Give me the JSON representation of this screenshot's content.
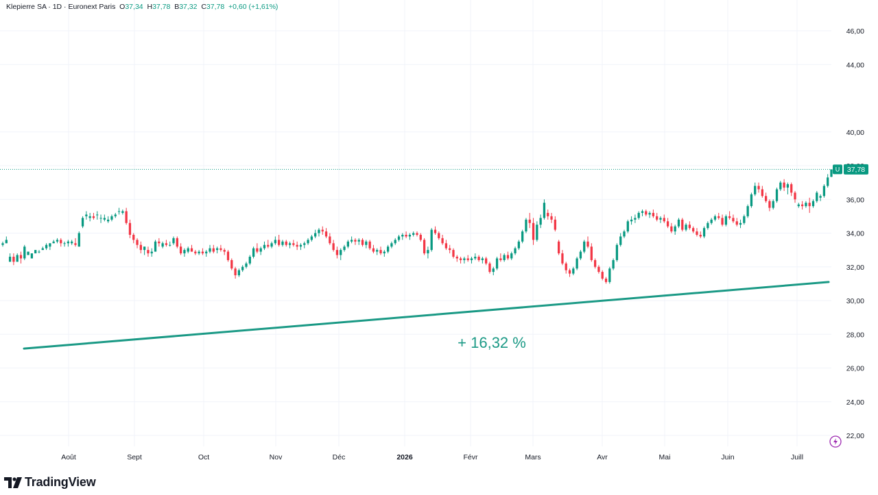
{
  "legend": {
    "symbol": "Klepierre SA · 1D · Euronext Paris",
    "o_key": "O",
    "o_val": "37,34",
    "h_key": "H",
    "h_val": "37,78",
    "b_key": "B",
    "b_val": "37,32",
    "c_key": "C",
    "c_val": "37,78",
    "change": "+0,60 (+1,61%)"
  },
  "annotation": "+ 16,32 %",
  "price_badge": {
    "flag": "U",
    "value": "37,78"
  },
  "brand": "TradingView",
  "colors": {
    "up": "#089981",
    "down": "#f23645",
    "grid": "#f0f3fa",
    "axis_text": "#131722",
    "trend": "#1a9985"
  },
  "icons": [
    "tradingview-logo-icon",
    "lightning-icon"
  ],
  "chart_data": {
    "type": "candlestick",
    "ylim": [
      21,
      47
    ],
    "y_ticks": [
      "22,00",
      "24,00",
      "26,00",
      "28,00",
      "30,00",
      "32,00",
      "34,00",
      "36,00",
      "38,00",
      "40,00",
      "44,00",
      "46,00"
    ],
    "y_tick_values": [
      22,
      24,
      26,
      28,
      30,
      32,
      34,
      36,
      38,
      40,
      44,
      46
    ],
    "x_labels": [
      "Août",
      "Sept",
      "Oct",
      "Nov",
      "Déc",
      "2026",
      "Févr",
      "Mars",
      "Avr",
      "Mai",
      "Juin",
      "Juill"
    ],
    "last_price": 37.78,
    "trendline": {
      "start": 27.15,
      "end": 31.1
    },
    "ohlc": [
      [
        33.3,
        33.5,
        33.2,
        33.4
      ],
      [
        33.4,
        33.8,
        33.4,
        33.6
      ],
      [
        32.3,
        32.8,
        32.3,
        32.6
      ],
      [
        32.6,
        32.8,
        32.1,
        32.3
      ],
      [
        32.3,
        32.8,
        32.3,
        32.7
      ],
      [
        32.7,
        32.9,
        32.2,
        32.5
      ],
      [
        32.5,
        33.3,
        32.4,
        33.2
      ],
      [
        32.7,
        32.9,
        32.7,
        32.9
      ],
      [
        32.5,
        32.8,
        32.5,
        32.8
      ],
      [
        32.8,
        33.0,
        32.8,
        33.0
      ],
      [
        32.9,
        33.0,
        32.8,
        32.9
      ],
      [
        33.0,
        33.2,
        33.0,
        33.1
      ],
      [
        33.1,
        33.4,
        33.0,
        33.3
      ],
      [
        33.2,
        33.4,
        33.0,
        33.4
      ],
      [
        33.4,
        33.6,
        33.4,
        33.5
      ],
      [
        33.5,
        33.7,
        33.4,
        33.6
      ],
      [
        33.6,
        33.7,
        33.2,
        33.4
      ],
      [
        33.4,
        33.5,
        33.2,
        33.4
      ],
      [
        33.4,
        33.6,
        33.2,
        33.5
      ],
      [
        33.4,
        33.6,
        33.3,
        33.5
      ],
      [
        33.4,
        33.7,
        33.2,
        33.3
      ],
      [
        33.2,
        34.1,
        33.2,
        34.0
      ],
      [
        34.4,
        35.0,
        34.3,
        34.9
      ],
      [
        35.0,
        35.3,
        34.8,
        35.1
      ],
      [
        34.9,
        35.2,
        34.7,
        35.0
      ],
      [
        35.0,
        35.2,
        34.8,
        34.9
      ],
      [
        35.1,
        35.3,
        34.8,
        35.1
      ],
      [
        34.9,
        35.1,
        34.6,
        34.9
      ],
      [
        34.8,
        35.1,
        34.7,
        34.9
      ],
      [
        34.7,
        35.0,
        34.6,
        34.8
      ],
      [
        34.8,
        35.1,
        34.7,
        35.0
      ],
      [
        35.0,
        35.2,
        34.9,
        35.1
      ],
      [
        35.3,
        35.5,
        35.1,
        35.3
      ],
      [
        35.2,
        35.4,
        35.1,
        35.3
      ],
      [
        35.3,
        35.5,
        34.5,
        34.6
      ],
      [
        34.6,
        34.8,
        33.7,
        33.9
      ],
      [
        33.9,
        34.0,
        33.4,
        33.6
      ],
      [
        33.6,
        33.7,
        33.1,
        33.3
      ],
      [
        33.3,
        33.5,
        32.8,
        33.0
      ],
      [
        33.0,
        33.2,
        32.7,
        33.2
      ],
      [
        33.0,
        33.2,
        32.6,
        32.8
      ],
      [
        32.8,
        33.1,
        32.6,
        32.9
      ],
      [
        32.9,
        33.6,
        32.9,
        33.5
      ],
      [
        33.5,
        33.7,
        33.2,
        33.4
      ],
      [
        33.2,
        33.5,
        33.1,
        33.4
      ],
      [
        33.4,
        33.6,
        33.2,
        33.3
      ],
      [
        33.3,
        33.5,
        33.2,
        33.3
      ],
      [
        33.4,
        33.8,
        33.3,
        33.7
      ],
      [
        33.7,
        33.8,
        33.1,
        33.2
      ],
      [
        33.2,
        33.4,
        32.7,
        32.8
      ],
      [
        32.8,
        33.1,
        32.6,
        33.0
      ],
      [
        32.9,
        33.2,
        32.8,
        33.1
      ],
      [
        33.1,
        33.3,
        32.9,
        32.9
      ],
      [
        32.9,
        33.0,
        32.7,
        32.8
      ],
      [
        32.8,
        33.0,
        32.7,
        32.9
      ],
      [
        32.9,
        33.1,
        32.7,
        32.8
      ],
      [
        32.8,
        33.0,
        32.6,
        32.9
      ],
      [
        32.9,
        33.3,
        32.8,
        33.1
      ],
      [
        33.1,
        33.3,
        32.8,
        32.9
      ],
      [
        33.0,
        33.2,
        32.8,
        33.1
      ],
      [
        33.1,
        33.3,
        32.9,
        33.0
      ],
      [
        33.0,
        33.1,
        32.7,
        32.9
      ],
      [
        32.9,
        33.0,
        32.3,
        32.4
      ],
      [
        32.4,
        32.5,
        31.8,
        31.9
      ],
      [
        31.9,
        32.0,
        31.3,
        31.5
      ],
      [
        31.5,
        31.9,
        31.4,
        31.8
      ],
      [
        31.8,
        32.1,
        31.7,
        32.0
      ],
      [
        32.0,
        32.3,
        31.9,
        32.2
      ],
      [
        32.2,
        32.7,
        32.1,
        32.6
      ],
      [
        32.6,
        33.2,
        32.5,
        33.1
      ],
      [
        33.1,
        33.4,
        32.8,
        32.9
      ],
      [
        32.9,
        33.2,
        32.7,
        33.1
      ],
      [
        33.1,
        33.5,
        33.0,
        33.3
      ],
      [
        33.3,
        33.6,
        33.1,
        33.2
      ],
      [
        33.2,
        33.5,
        33.1,
        33.4
      ],
      [
        33.4,
        33.8,
        33.3,
        33.6
      ],
      [
        33.6,
        33.9,
        33.2,
        33.3
      ],
      [
        33.3,
        33.6,
        33.2,
        33.5
      ],
      [
        33.5,
        33.6,
        33.2,
        33.3
      ],
      [
        33.3,
        33.5,
        33.1,
        33.4
      ],
      [
        33.4,
        33.6,
        33.2,
        33.3
      ],
      [
        33.3,
        33.5,
        33.0,
        33.2
      ],
      [
        33.2,
        33.4,
        33.0,
        33.3
      ],
      [
        33.3,
        33.5,
        33.1,
        33.4
      ],
      [
        33.4,
        33.7,
        33.3,
        33.6
      ],
      [
        33.6,
        33.9,
        33.5,
        33.8
      ],
      [
        33.8,
        34.2,
        33.7,
        34.0
      ],
      [
        34.0,
        34.3,
        33.8,
        34.2
      ],
      [
        34.2,
        34.4,
        33.9,
        34.1
      ],
      [
        34.1,
        34.3,
        33.7,
        33.8
      ],
      [
        33.8,
        34.0,
        33.3,
        33.4
      ],
      [
        33.4,
        33.6,
        32.9,
        33.0
      ],
      [
        33.0,
        33.2,
        32.5,
        32.7
      ],
      [
        32.7,
        33.1,
        32.4,
        33.0
      ],
      [
        33.0,
        33.3,
        32.9,
        33.2
      ],
      [
        33.2,
        33.6,
        33.1,
        33.5
      ],
      [
        33.5,
        33.8,
        33.4,
        33.6
      ],
      [
        33.6,
        33.7,
        33.3,
        33.5
      ],
      [
        33.5,
        33.7,
        33.3,
        33.6
      ],
      [
        33.6,
        33.7,
        33.2,
        33.3
      ],
      [
        33.3,
        33.6,
        33.1,
        33.5
      ],
      [
        33.5,
        33.6,
        33.0,
        33.1
      ],
      [
        33.1,
        33.3,
        32.8,
        32.9
      ],
      [
        32.9,
        33.1,
        32.7,
        33.0
      ],
      [
        33.0,
        33.2,
        32.7,
        32.8
      ],
      [
        32.8,
        33.0,
        32.6,
        32.9
      ],
      [
        32.9,
        33.3,
        32.8,
        33.2
      ],
      [
        33.2,
        33.5,
        33.1,
        33.4
      ],
      [
        33.4,
        33.7,
        33.3,
        33.6
      ],
      [
        33.6,
        33.9,
        33.5,
        33.8
      ],
      [
        33.8,
        34.0,
        33.6,
        33.9
      ],
      [
        33.9,
        34.1,
        33.7,
        33.8
      ],
      [
        33.8,
        34.0,
        33.6,
        33.9
      ],
      [
        33.9,
        34.1,
        33.8,
        34.0
      ],
      [
        34.0,
        34.1,
        33.8,
        33.9
      ],
      [
        33.9,
        34.0,
        33.5,
        33.6
      ],
      [
        33.6,
        33.7,
        32.7,
        32.8
      ],
      [
        32.8,
        33.2,
        32.5,
        33.0
      ],
      [
        33.0,
        34.3,
        32.9,
        34.2
      ],
      [
        34.2,
        34.4,
        33.9,
        34.0
      ],
      [
        34.0,
        34.1,
        33.6,
        33.7
      ],
      [
        33.7,
        33.9,
        33.3,
        33.4
      ],
      [
        33.4,
        33.6,
        33.0,
        33.1
      ],
      [
        33.1,
        33.3,
        32.8,
        33.0
      ],
      [
        33.0,
        33.1,
        32.5,
        32.6
      ],
      [
        32.6,
        32.7,
        32.3,
        32.5
      ],
      [
        32.5,
        32.6,
        32.2,
        32.4
      ],
      [
        32.4,
        32.6,
        32.2,
        32.5
      ],
      [
        32.5,
        32.7,
        32.3,
        32.4
      ],
      [
        32.4,
        32.6,
        32.2,
        32.5
      ],
      [
        32.5,
        32.8,
        32.4,
        32.6
      ],
      [
        32.6,
        32.7,
        32.3,
        32.4
      ],
      [
        32.4,
        32.6,
        32.2,
        32.5
      ],
      [
        32.5,
        32.6,
        32.1,
        32.2
      ],
      [
        32.2,
        32.3,
        31.6,
        31.7
      ],
      [
        31.7,
        32.0,
        31.5,
        31.9
      ],
      [
        31.9,
        32.6,
        31.8,
        32.5
      ],
      [
        32.5,
        32.8,
        32.3,
        32.4
      ],
      [
        32.4,
        32.8,
        32.3,
        32.7
      ],
      [
        32.7,
        32.9,
        32.4,
        32.5
      ],
      [
        32.5,
        32.9,
        32.4,
        32.8
      ],
      [
        32.8,
        33.2,
        32.7,
        33.1
      ],
      [
        33.1,
        33.6,
        33.0,
        33.5
      ],
      [
        33.5,
        34.2,
        33.4,
        34.1
      ],
      [
        34.1,
        34.9,
        34.0,
        34.8
      ],
      [
        34.8,
        35.2,
        34.3,
        34.6
      ],
      [
        34.6,
        34.9,
        33.3,
        33.6
      ],
      [
        33.6,
        34.7,
        33.5,
        34.5
      ],
      [
        34.5,
        35.1,
        34.3,
        34.9
      ],
      [
        34.9,
        36.0,
        34.8,
        35.8
      ],
      [
        35.2,
        35.4,
        34.8,
        35.0
      ],
      [
        35.0,
        35.2,
        34.6,
        34.8
      ],
      [
        34.8,
        35.0,
        34.1,
        34.2
      ],
      [
        33.5,
        33.6,
        32.7,
        32.8
      ],
      [
        32.8,
        33.0,
        32.1,
        32.2
      ],
      [
        32.2,
        32.3,
        31.6,
        31.8
      ],
      [
        31.8,
        31.9,
        31.4,
        31.6
      ],
      [
        31.6,
        32.0,
        31.5,
        31.9
      ],
      [
        31.9,
        32.6,
        31.8,
        32.5
      ],
      [
        32.5,
        33.0,
        32.4,
        32.9
      ],
      [
        32.9,
        33.6,
        32.8,
        33.5
      ],
      [
        33.5,
        33.8,
        33.1,
        33.2
      ],
      [
        33.2,
        33.4,
        32.3,
        32.4
      ],
      [
        32.4,
        32.5,
        31.9,
        32.0
      ],
      [
        32.0,
        32.1,
        31.6,
        31.7
      ],
      [
        31.7,
        31.8,
        31.2,
        31.3
      ],
      [
        31.3,
        31.4,
        31.0,
        31.1
      ],
      [
        31.1,
        32.0,
        31.0,
        31.9
      ],
      [
        31.9,
        32.5,
        31.8,
        32.4
      ],
      [
        32.4,
        33.4,
        32.3,
        33.3
      ],
      [
        33.3,
        34.0,
        33.2,
        33.8
      ],
      [
        33.8,
        34.2,
        33.7,
        34.1
      ],
      [
        34.1,
        34.8,
        34.0,
        34.7
      ],
      [
        34.7,
        35.0,
        34.5,
        34.8
      ],
      [
        34.8,
        35.1,
        34.6,
        34.9
      ],
      [
        34.9,
        35.3,
        34.8,
        35.2
      ],
      [
        35.2,
        35.4,
        35.0,
        35.3
      ],
      [
        35.3,
        35.4,
        35.0,
        35.1
      ],
      [
        35.1,
        35.3,
        34.9,
        35.2
      ],
      [
        35.2,
        35.4,
        34.9,
        35.0
      ],
      [
        35.0,
        35.2,
        34.7,
        34.8
      ],
      [
        34.8,
        35.0,
        34.6,
        34.9
      ],
      [
        34.9,
        35.1,
        34.6,
        34.7
      ],
      [
        34.7,
        34.9,
        34.3,
        34.4
      ],
      [
        34.4,
        34.6,
        34.0,
        34.1
      ],
      [
        34.1,
        34.5,
        33.9,
        34.4
      ],
      [
        34.4,
        34.9,
        34.3,
        34.8
      ],
      [
        34.8,
        34.9,
        34.1,
        34.2
      ],
      [
        34.2,
        34.6,
        34.1,
        34.5
      ],
      [
        34.5,
        34.7,
        34.2,
        34.3
      ],
      [
        34.3,
        34.4,
        34.0,
        34.1
      ],
      [
        34.1,
        34.3,
        33.8,
        33.9
      ],
      [
        33.9,
        34.1,
        33.7,
        33.8
      ],
      [
        33.8,
        34.4,
        33.7,
        34.3
      ],
      [
        34.3,
        34.7,
        34.2,
        34.6
      ],
      [
        34.6,
        34.9,
        34.5,
        34.8
      ],
      [
        34.8,
        35.1,
        34.7,
        35.0
      ],
      [
        35.0,
        35.2,
        34.8,
        34.9
      ],
      [
        34.9,
        35.1,
        34.4,
        34.5
      ],
      [
        34.5,
        35.1,
        34.4,
        35.0
      ],
      [
        35.0,
        35.3,
        34.8,
        34.9
      ],
      [
        34.9,
        35.1,
        34.6,
        34.7
      ],
      [
        34.7,
        34.9,
        34.4,
        34.5
      ],
      [
        34.5,
        34.8,
        34.3,
        34.6
      ],
      [
        34.6,
        35.1,
        34.5,
        35.0
      ],
      [
        35.0,
        35.7,
        34.9,
        35.6
      ],
      [
        35.6,
        36.4,
        35.5,
        36.3
      ],
      [
        36.3,
        37.0,
        36.2,
        36.8
      ],
      [
        36.8,
        37.0,
        36.4,
        36.6
      ],
      [
        36.6,
        36.8,
        36.1,
        36.2
      ],
      [
        36.2,
        36.4,
        35.8,
        35.9
      ],
      [
        35.9,
        36.0,
        35.3,
        35.5
      ],
      [
        35.5,
        36.0,
        35.4,
        35.9
      ],
      [
        35.9,
        36.7,
        35.8,
        36.6
      ],
      [
        36.6,
        37.1,
        36.5,
        37.0
      ],
      [
        37.0,
        37.2,
        36.5,
        36.7
      ],
      [
        36.7,
        37.0,
        36.3,
        36.9
      ],
      [
        36.9,
        37.0,
        36.2,
        36.4
      ],
      [
        36.4,
        36.5,
        35.8,
        36.0
      ],
      [
        35.6,
        35.8,
        35.5,
        35.7
      ],
      [
        35.7,
        35.9,
        35.4,
        35.6
      ],
      [
        35.6,
        35.9,
        35.5,
        35.8
      ],
      [
        35.8,
        36.1,
        35.2,
        35.6
      ],
      [
        35.6,
        36.0,
        35.5,
        35.9
      ],
      [
        35.9,
        36.5,
        35.8,
        36.4
      ],
      [
        36.1,
        36.3,
        35.9,
        36.2
      ],
      [
        36.2,
        36.9,
        36.1,
        36.8
      ],
      [
        36.8,
        37.5,
        36.7,
        37.3
      ],
      [
        37.34,
        37.78,
        37.32,
        37.78
      ]
    ]
  }
}
